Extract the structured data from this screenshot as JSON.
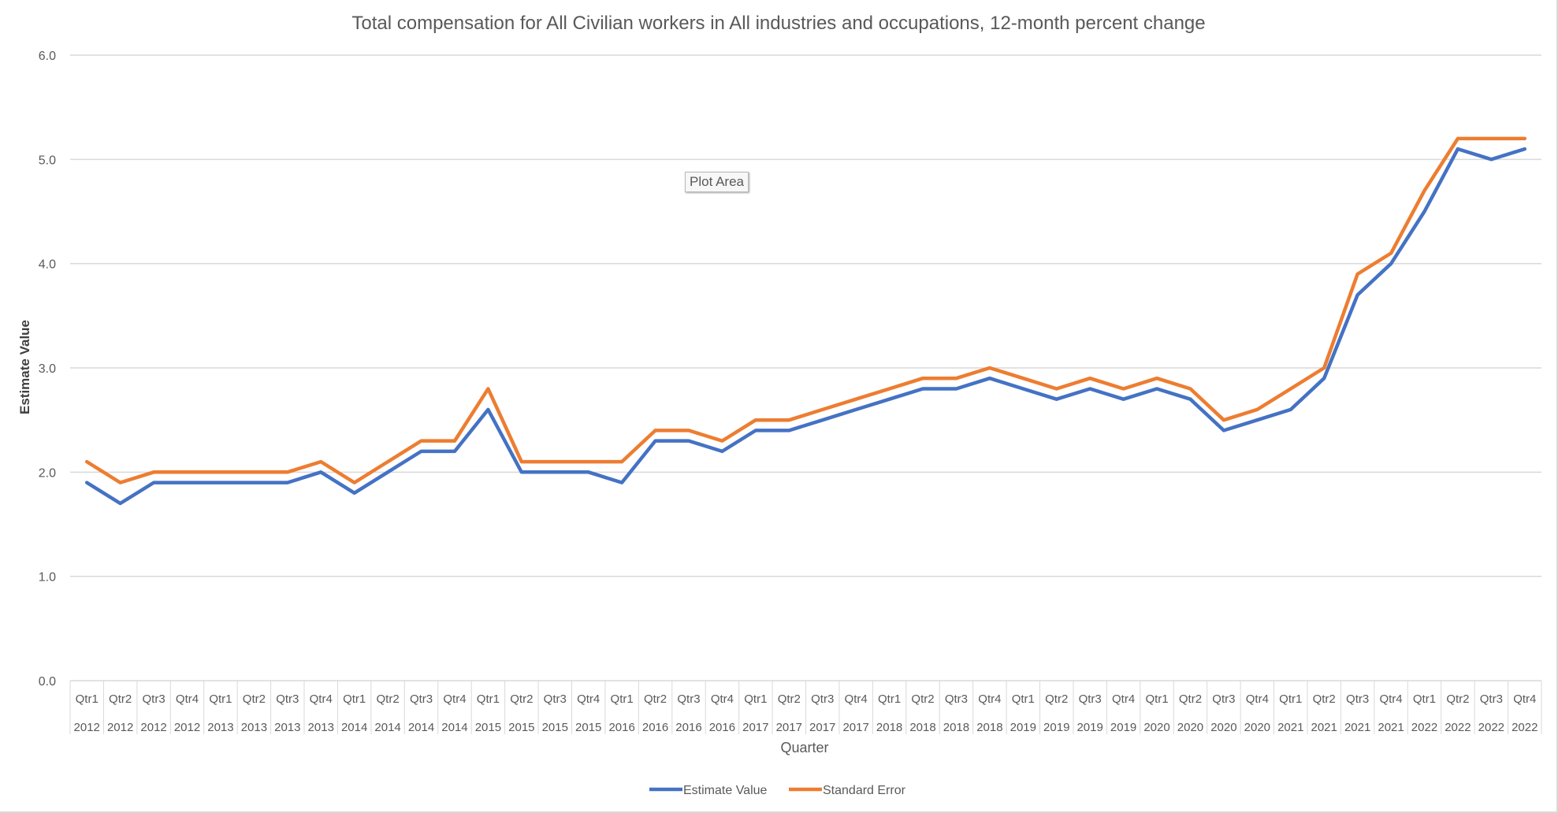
{
  "chart_data": {
    "type": "line",
    "title": "Total compensation for All Civilian workers in All industries and occupations, 12-month percent change",
    "xlabel": "Quarter",
    "ylabel": "Estimate Value",
    "ylim": [
      0,
      6
    ],
    "y_ticks": [
      "0.0",
      "1.0",
      "2.0",
      "3.0",
      "4.0",
      "5.0",
      "6.0"
    ],
    "grid": true,
    "legend_position": "bottom",
    "x": [
      [
        "Qtr1",
        "2012"
      ],
      [
        "Qtr2",
        "2012"
      ],
      [
        "Qtr3",
        "2012"
      ],
      [
        "Qtr4",
        "2012"
      ],
      [
        "Qtr1",
        "2013"
      ],
      [
        "Qtr2",
        "2013"
      ],
      [
        "Qtr3",
        "2013"
      ],
      [
        "Qtr4",
        "2013"
      ],
      [
        "Qtr1",
        "2014"
      ],
      [
        "Qtr2",
        "2014"
      ],
      [
        "Qtr3",
        "2014"
      ],
      [
        "Qtr4",
        "2014"
      ],
      [
        "Qtr1",
        "2015"
      ],
      [
        "Qtr2",
        "2015"
      ],
      [
        "Qtr3",
        "2015"
      ],
      [
        "Qtr4",
        "2015"
      ],
      [
        "Qtr1",
        "2016"
      ],
      [
        "Qtr2",
        "2016"
      ],
      [
        "Qtr3",
        "2016"
      ],
      [
        "Qtr4",
        "2016"
      ],
      [
        "Qtr1",
        "2017"
      ],
      [
        "Qtr2",
        "2017"
      ],
      [
        "Qtr3",
        "2017"
      ],
      [
        "Qtr4",
        "2017"
      ],
      [
        "Qtr1",
        "2018"
      ],
      [
        "Qtr2",
        "2018"
      ],
      [
        "Qtr3",
        "2018"
      ],
      [
        "Qtr4",
        "2018"
      ],
      [
        "Qtr1",
        "2019"
      ],
      [
        "Qtr2",
        "2019"
      ],
      [
        "Qtr3",
        "2019"
      ],
      [
        "Qtr4",
        "2019"
      ],
      [
        "Qtr1",
        "2020"
      ],
      [
        "Qtr2",
        "2020"
      ],
      [
        "Qtr3",
        "2020"
      ],
      [
        "Qtr4",
        "2020"
      ],
      [
        "Qtr1",
        "2021"
      ],
      [
        "Qtr2",
        "2021"
      ],
      [
        "Qtr3",
        "2021"
      ],
      [
        "Qtr4",
        "2021"
      ],
      [
        "Qtr1",
        "2022"
      ],
      [
        "Qtr2",
        "2022"
      ],
      [
        "Qtr3",
        "2022"
      ],
      [
        "Qtr4",
        "2022"
      ]
    ],
    "series": [
      {
        "name": "Estimate Value",
        "color": "#4472c4",
        "values": [
          1.9,
          1.7,
          1.9,
          1.9,
          1.9,
          1.9,
          1.9,
          2.0,
          1.8,
          2.0,
          2.2,
          2.2,
          2.6,
          2.0,
          2.0,
          2.0,
          1.9,
          2.3,
          2.3,
          2.2,
          2.4,
          2.4,
          2.5,
          2.6,
          2.7,
          2.8,
          2.8,
          2.9,
          2.8,
          2.7,
          2.8,
          2.7,
          2.8,
          2.7,
          2.4,
          2.5,
          2.6,
          2.9,
          3.7,
          4.0,
          4.5,
          5.1,
          5.0,
          5.1
        ]
      },
      {
        "name": "Standard Error",
        "color": "#ed7d31",
        "values": [
          2.1,
          1.9,
          2.0,
          2.0,
          2.0,
          2.0,
          2.0,
          2.1,
          1.9,
          2.1,
          2.3,
          2.3,
          2.8,
          2.1,
          2.1,
          2.1,
          2.1,
          2.4,
          2.4,
          2.3,
          2.5,
          2.5,
          2.6,
          2.7,
          2.8,
          2.9,
          2.9,
          3.0,
          2.9,
          2.8,
          2.9,
          2.8,
          2.9,
          2.8,
          2.5,
          2.6,
          2.8,
          3.0,
          3.9,
          4.1,
          4.7,
          5.2,
          5.2,
          5.2
        ]
      }
    ]
  },
  "tooltip": {
    "label": "Plot Area"
  }
}
